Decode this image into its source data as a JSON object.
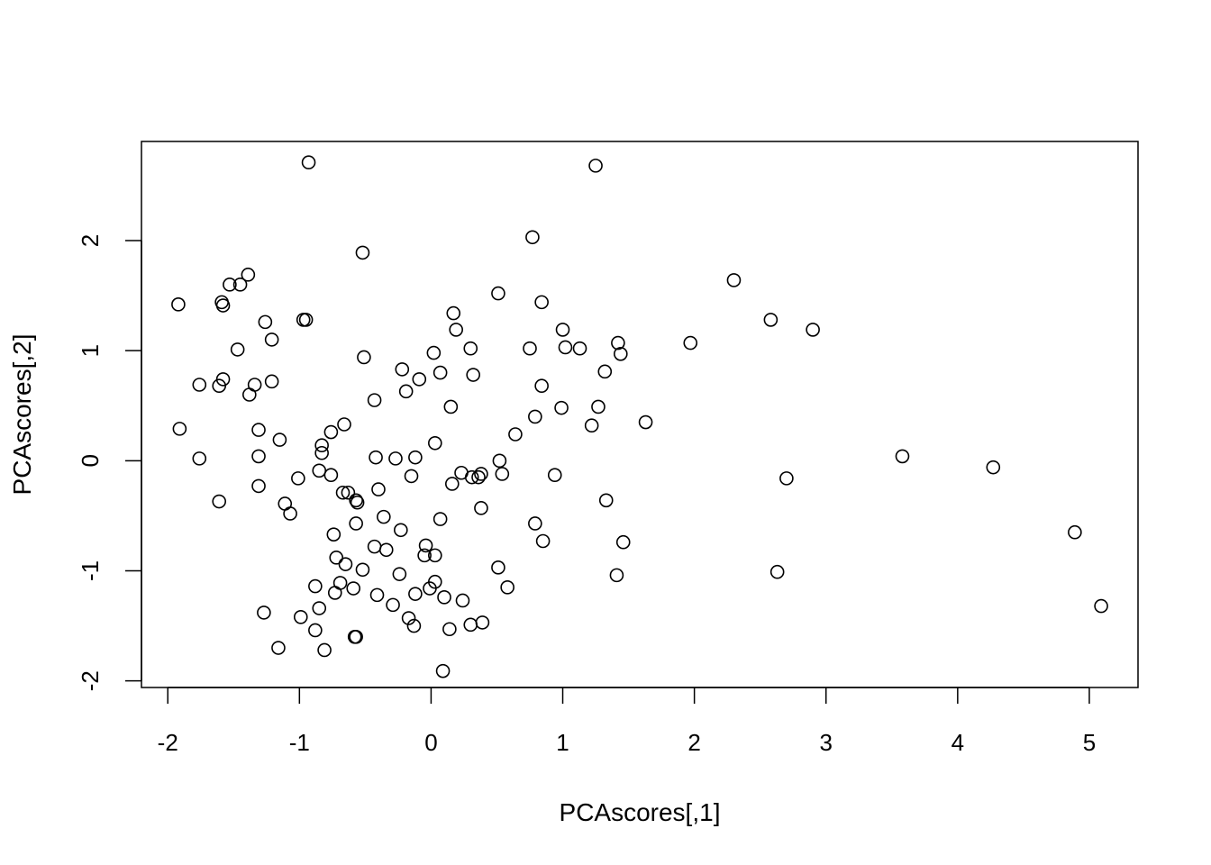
{
  "chart_data": {
    "type": "scatter",
    "title": "",
    "xlabel": "PCAscores[,1]",
    "ylabel": "PCAscores[,2]",
    "xlim": [
      -2.2,
      5.37
    ],
    "ylim": [
      -2.06,
      2.9
    ],
    "xticks": [
      -2,
      -1,
      0,
      1,
      2,
      3,
      4,
      5
    ],
    "xtick_labels": [
      "-2",
      "-1",
      "0",
      "1",
      "2",
      "3",
      "4",
      "5"
    ],
    "yticks": [
      -2,
      -1,
      0,
      1,
      2
    ],
    "ytick_labels": [
      "-2",
      "-1",
      "0",
      "1",
      "2"
    ],
    "grid": false,
    "legend": "none",
    "marker": "open-circle",
    "marker_color": "#000000",
    "points": [
      [
        -0.93,
        2.71
      ],
      [
        1.25,
        2.68
      ],
      [
        0.77,
        2.03
      ],
      [
        -0.52,
        1.89
      ],
      [
        2.3,
        1.64
      ],
      [
        -1.39,
        1.69
      ],
      [
        -1.45,
        1.6
      ],
      [
        -1.53,
        1.6
      ],
      [
        -1.59,
        1.44
      ],
      [
        -1.58,
        1.41
      ],
      [
        -1.92,
        1.42
      ],
      [
        0.51,
        1.52
      ],
      [
        0.84,
        1.44
      ],
      [
        0.17,
        1.34
      ],
      [
        -0.97,
        1.28
      ],
      [
        -0.95,
        1.28
      ],
      [
        -1.26,
        1.26
      ],
      [
        2.58,
        1.28
      ],
      [
        2.9,
        1.19
      ],
      [
        0.19,
        1.19
      ],
      [
        1.0,
        1.19
      ],
      [
        -1.21,
        1.1
      ],
      [
        1.42,
        1.07
      ],
      [
        1.97,
        1.07
      ],
      [
        1.02,
        1.03
      ],
      [
        1.13,
        1.02
      ],
      [
        0.75,
        1.02
      ],
      [
        0.3,
        1.02
      ],
      [
        -1.47,
        1.01
      ],
      [
        0.02,
        0.98
      ],
      [
        1.44,
        0.97
      ],
      [
        -0.51,
        0.94
      ],
      [
        -0.22,
        0.83
      ],
      [
        0.07,
        0.8
      ],
      [
        1.32,
        0.81
      ],
      [
        0.32,
        0.78
      ],
      [
        -0.09,
        0.74
      ],
      [
        -1.58,
        0.74
      ],
      [
        -1.21,
        0.72
      ],
      [
        -1.34,
        0.69
      ],
      [
        -1.76,
        0.69
      ],
      [
        -1.61,
        0.68
      ],
      [
        0.84,
        0.68
      ],
      [
        -0.19,
        0.63
      ],
      [
        -1.38,
        0.6
      ],
      [
        -0.43,
        0.55
      ],
      [
        0.15,
        0.49
      ],
      [
        0.99,
        0.48
      ],
      [
        1.27,
        0.49
      ],
      [
        0.79,
        0.4
      ],
      [
        1.63,
        0.35
      ],
      [
        -0.66,
        0.33
      ],
      [
        1.22,
        0.32
      ],
      [
        -1.31,
        0.28
      ],
      [
        -1.91,
        0.29
      ],
      [
        -0.76,
        0.26
      ],
      [
        0.64,
        0.24
      ],
      [
        -1.15,
        0.19
      ],
      [
        0.03,
        0.16
      ],
      [
        -0.83,
        0.14
      ],
      [
        -0.83,
        0.07
      ],
      [
        -1.31,
        0.04
      ],
      [
        -0.42,
        0.03
      ],
      [
        -0.12,
        0.03
      ],
      [
        -0.27,
        0.02
      ],
      [
        -1.76,
        0.02
      ],
      [
        3.58,
        0.04
      ],
      [
        0.52,
        0.0
      ],
      [
        4.27,
        -0.06
      ],
      [
        -0.85,
        -0.09
      ],
      [
        0.23,
        -0.11
      ],
      [
        0.38,
        -0.12
      ],
      [
        0.54,
        -0.12
      ],
      [
        0.94,
        -0.13
      ],
      [
        -0.76,
        -0.13
      ],
      [
        -0.15,
        -0.14
      ],
      [
        0.31,
        -0.15
      ],
      [
        0.36,
        -0.15
      ],
      [
        -1.01,
        -0.16
      ],
      [
        2.7,
        -0.16
      ],
      [
        0.16,
        -0.21
      ],
      [
        -1.31,
        -0.23
      ],
      [
        -0.4,
        -0.26
      ],
      [
        -0.67,
        -0.29
      ],
      [
        -0.63,
        -0.29
      ],
      [
        1.33,
        -0.36
      ],
      [
        -0.57,
        -0.36
      ],
      [
        -0.56,
        -0.38
      ],
      [
        -1.61,
        -0.37
      ],
      [
        -1.11,
        -0.39
      ],
      [
        0.38,
        -0.43
      ],
      [
        -1.07,
        -0.48
      ],
      [
        -0.36,
        -0.51
      ],
      [
        0.07,
        -0.53
      ],
      [
        -0.57,
        -0.57
      ],
      [
        0.79,
        -0.57
      ],
      [
        -0.23,
        -0.63
      ],
      [
        -0.74,
        -0.67
      ],
      [
        0.85,
        -0.73
      ],
      [
        1.46,
        -0.74
      ],
      [
        -0.43,
        -0.78
      ],
      [
        -0.04,
        -0.77
      ],
      [
        -0.34,
        -0.81
      ],
      [
        -0.05,
        -0.86
      ],
      [
        0.03,
        -0.86
      ],
      [
        -0.72,
        -0.88
      ],
      [
        -0.65,
        -0.94
      ],
      [
        -0.52,
        -0.99
      ],
      [
        0.51,
        -0.97
      ],
      [
        2.63,
        -1.01
      ],
      [
        1.41,
        -1.04
      ],
      [
        -0.24,
        -1.03
      ],
      [
        0.03,
        -1.1
      ],
      [
        -0.69,
        -1.11
      ],
      [
        -0.88,
        -1.14
      ],
      [
        0.58,
        -1.15
      ],
      [
        -0.01,
        -1.16
      ],
      [
        -0.59,
        -1.16
      ],
      [
        -0.73,
        -1.2
      ],
      [
        -0.12,
        -1.21
      ],
      [
        -0.41,
        -1.22
      ],
      [
        0.1,
        -1.24
      ],
      [
        0.24,
        -1.27
      ],
      [
        -0.29,
        -1.31
      ],
      [
        -0.85,
        -1.34
      ],
      [
        -1.27,
        -1.38
      ],
      [
        -0.99,
        -1.42
      ],
      [
        -0.17,
        -1.43
      ],
      [
        0.39,
        -1.47
      ],
      [
        -0.13,
        -1.5
      ],
      [
        0.3,
        -1.49
      ],
      [
        0.14,
        -1.53
      ],
      [
        -0.88,
        -1.54
      ],
      [
        -0.57,
        -1.6
      ],
      [
        -0.58,
        -1.6
      ],
      [
        -1.16,
        -1.7
      ],
      [
        -0.81,
        -1.72
      ],
      [
        0.09,
        -1.91
      ],
      [
        4.89,
        -0.65
      ],
      [
        5.09,
        -1.32
      ]
    ]
  }
}
